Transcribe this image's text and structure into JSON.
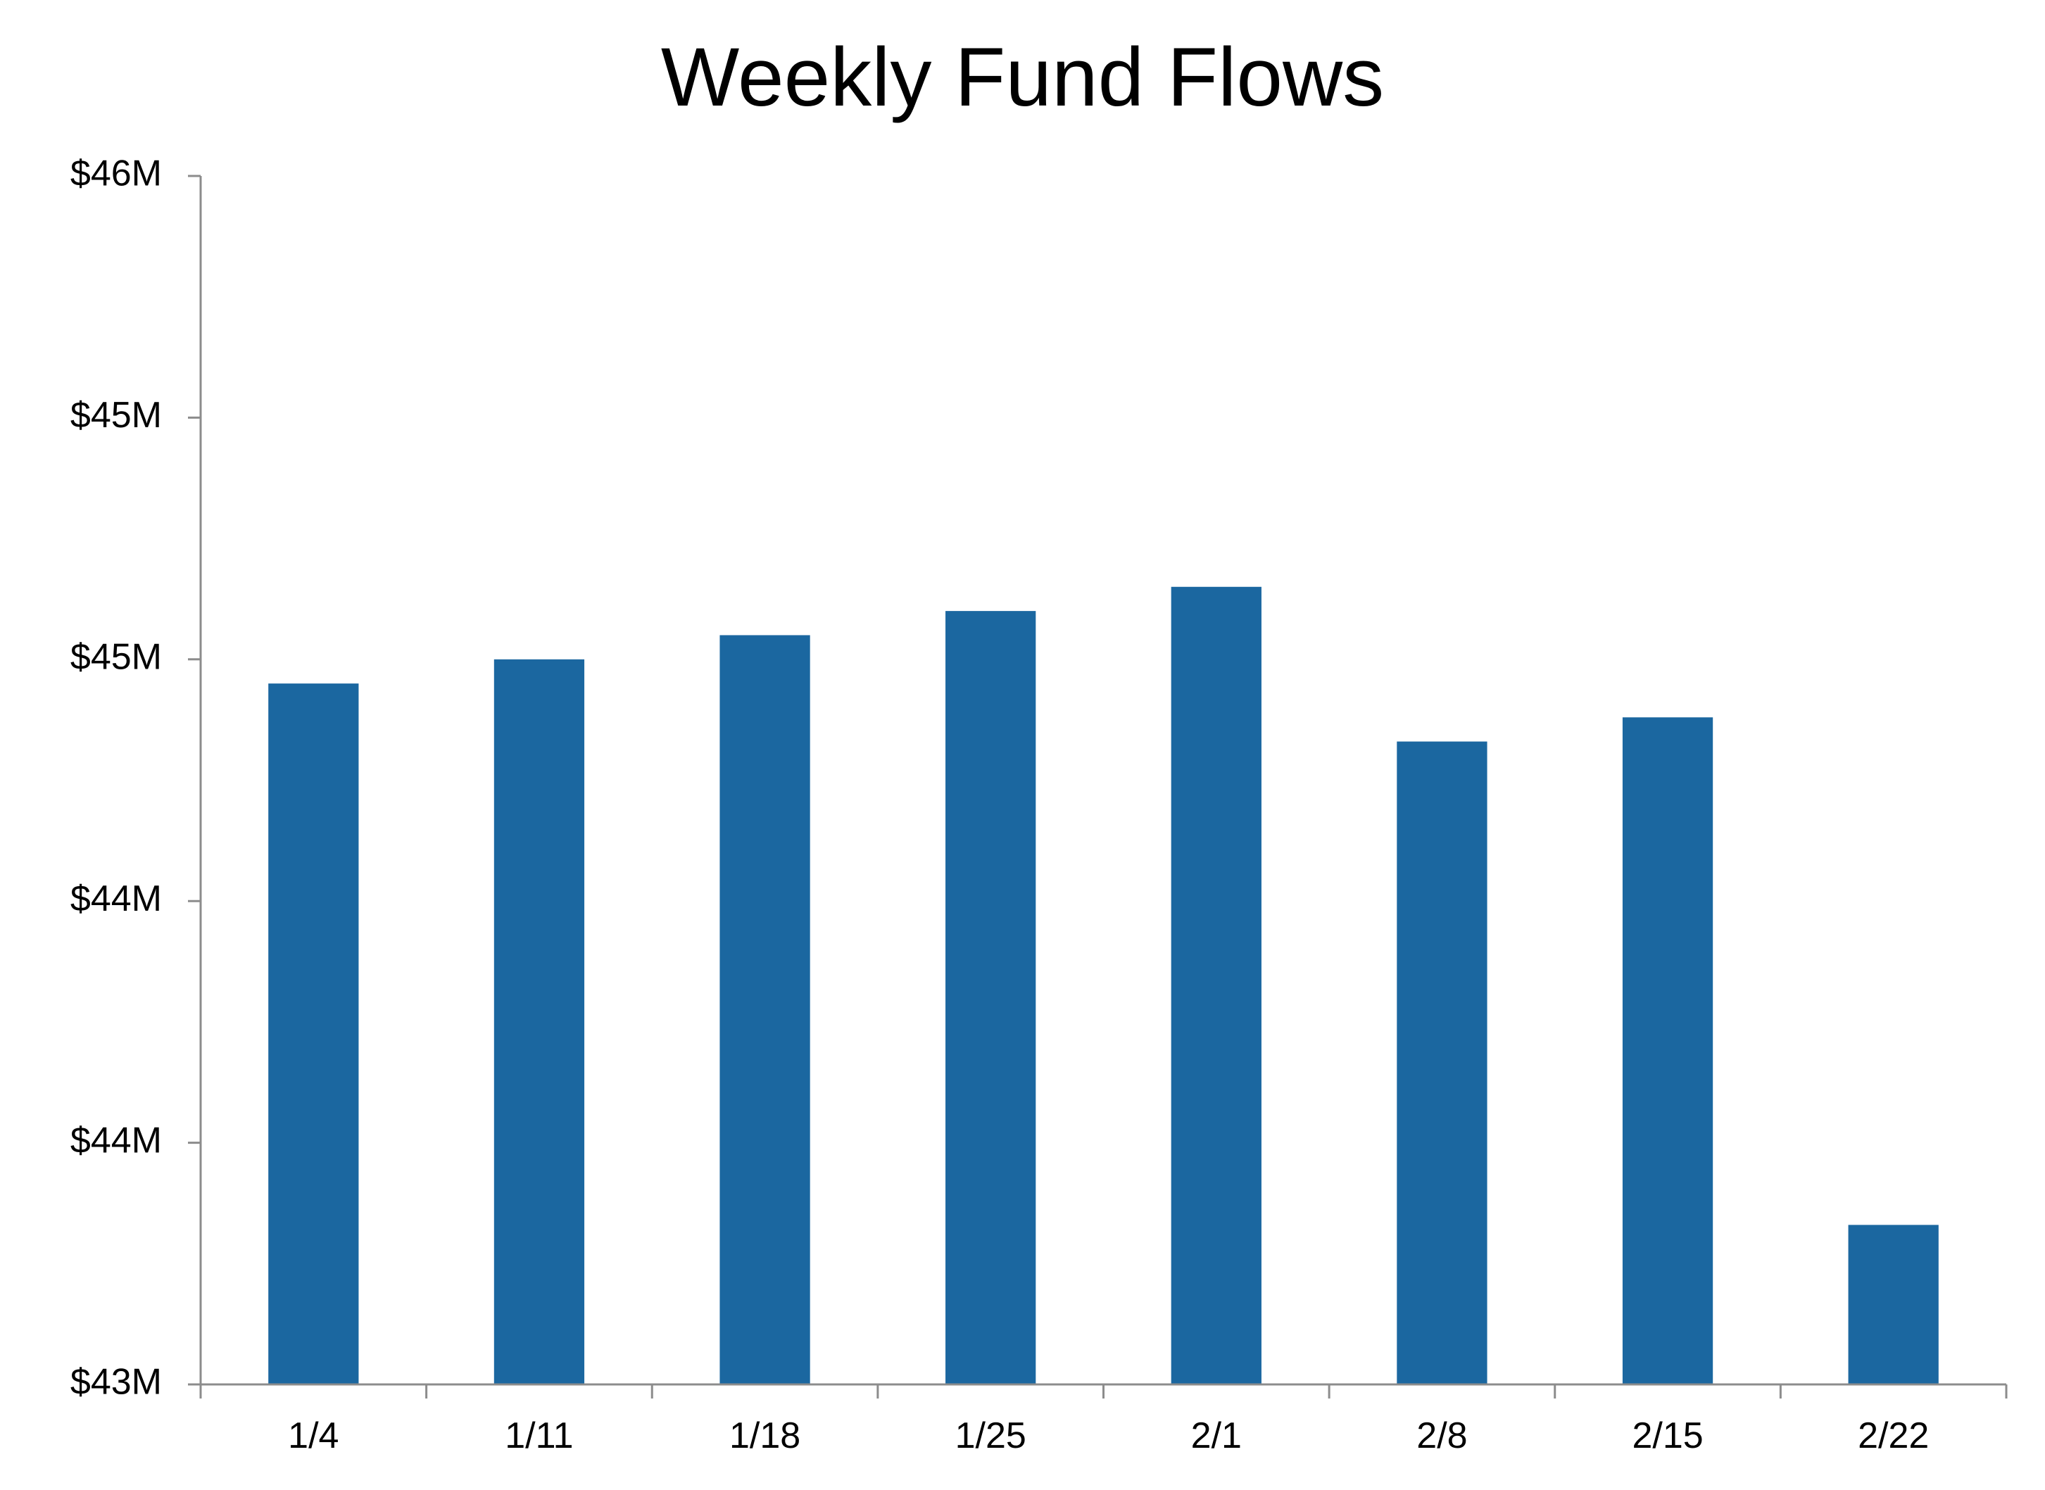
{
  "chart_data": {
    "type": "bar",
    "title": "Weekly Fund Flows",
    "xlabel": "",
    "ylabel": "",
    "categories": [
      "1/4",
      "1/11",
      "1/18",
      "1/25",
      "2/1",
      "2/8",
      "2/15",
      "2/22"
    ],
    "values": [
      44.45,
      44.5,
      44.55,
      44.6,
      44.65,
      44.33,
      44.38,
      43.33
    ],
    "ylim": [
      43.0,
      45.5
    ],
    "y_ticks": [
      43.0,
      43.5,
      44.0,
      44.5,
      45.0,
      45.5
    ],
    "y_tick_labels": [
      "$43M",
      "$44M",
      "$44M",
      "$45M",
      "$45M",
      "$46M"
    ],
    "grid": false,
    "legend": "none",
    "bar_color": "#1b67a0",
    "axis_color": "#8c8c8c"
  }
}
